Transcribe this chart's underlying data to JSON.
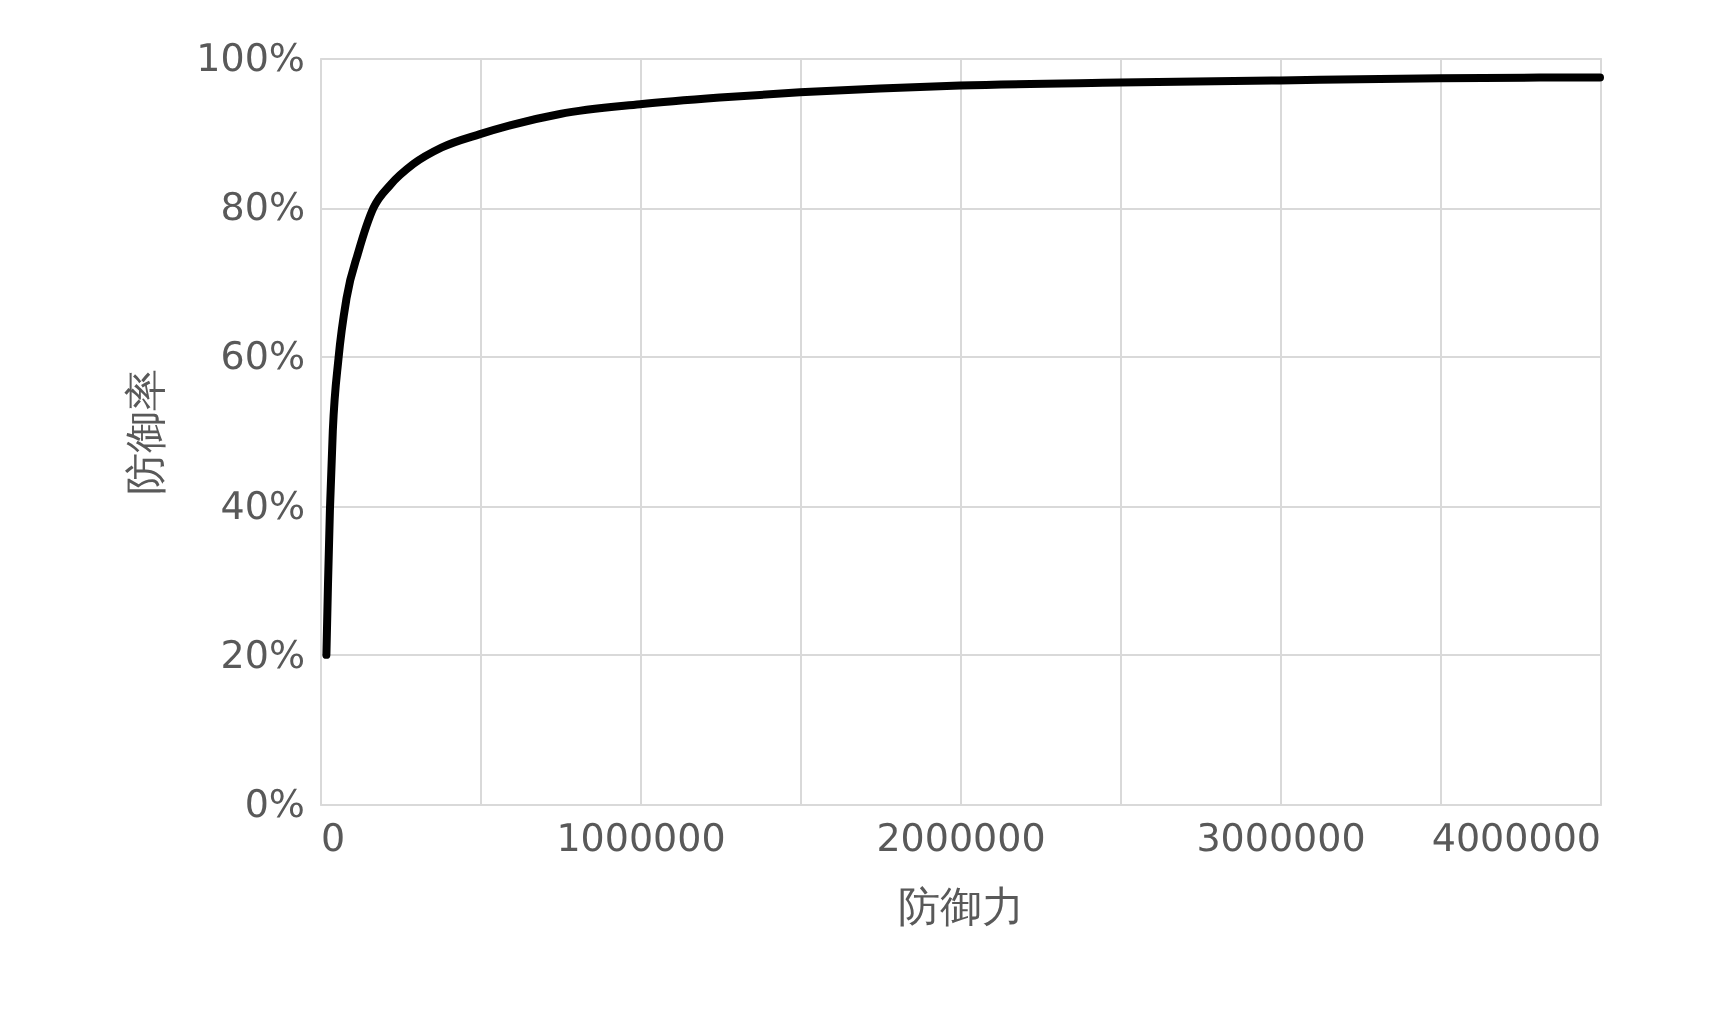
{
  "chart_data": {
    "type": "line",
    "xlabel": "防御力",
    "ylabel": "防御率",
    "x": [
      20000,
      25000,
      31000,
      40000,
      58000,
      83000,
      120000,
      167000,
      220000,
      292000,
      380000,
      500000,
      750000,
      1000000,
      1250000,
      1500000,
      1750000,
      2000000,
      2500000,
      3000000,
      3500000,
      4000000
    ],
    "series": [
      {
        "color": "#000000",
        "values": [
          0.2,
          0.295,
          0.394,
          0.5,
          0.598,
          0.678,
          0.74,
          0.799,
          0.83,
          0.858,
          0.88,
          0.898,
          0.925,
          0.938,
          0.947,
          0.954,
          0.959,
          0.963,
          0.967,
          0.97,
          0.973,
          0.974
        ]
      }
    ],
    "xlim": [
      0,
      4000000
    ],
    "ylim": [
      0,
      1
    ],
    "xticks": [
      0,
      {
        "value": 500000,
        "label": null
      },
      1000000,
      {
        "value": 1500000,
        "label": null
      },
      2000000,
      {
        "value": 2500000,
        "label": null
      },
      3000000,
      {
        "value": 3500000,
        "label": null
      },
      4000000
    ],
    "yticks": [
      {
        "value": 0,
        "label": "0%"
      },
      {
        "value": 0.2,
        "label": "20%"
      },
      {
        "value": 0.4,
        "label": "40%"
      },
      {
        "value": 0.6,
        "label": "60%"
      },
      {
        "value": 0.8,
        "label": "80%"
      },
      {
        "value": 1,
        "label": "100%"
      }
    ],
    "grid": true,
    "marker": "none",
    "line_style": "solid"
  }
}
